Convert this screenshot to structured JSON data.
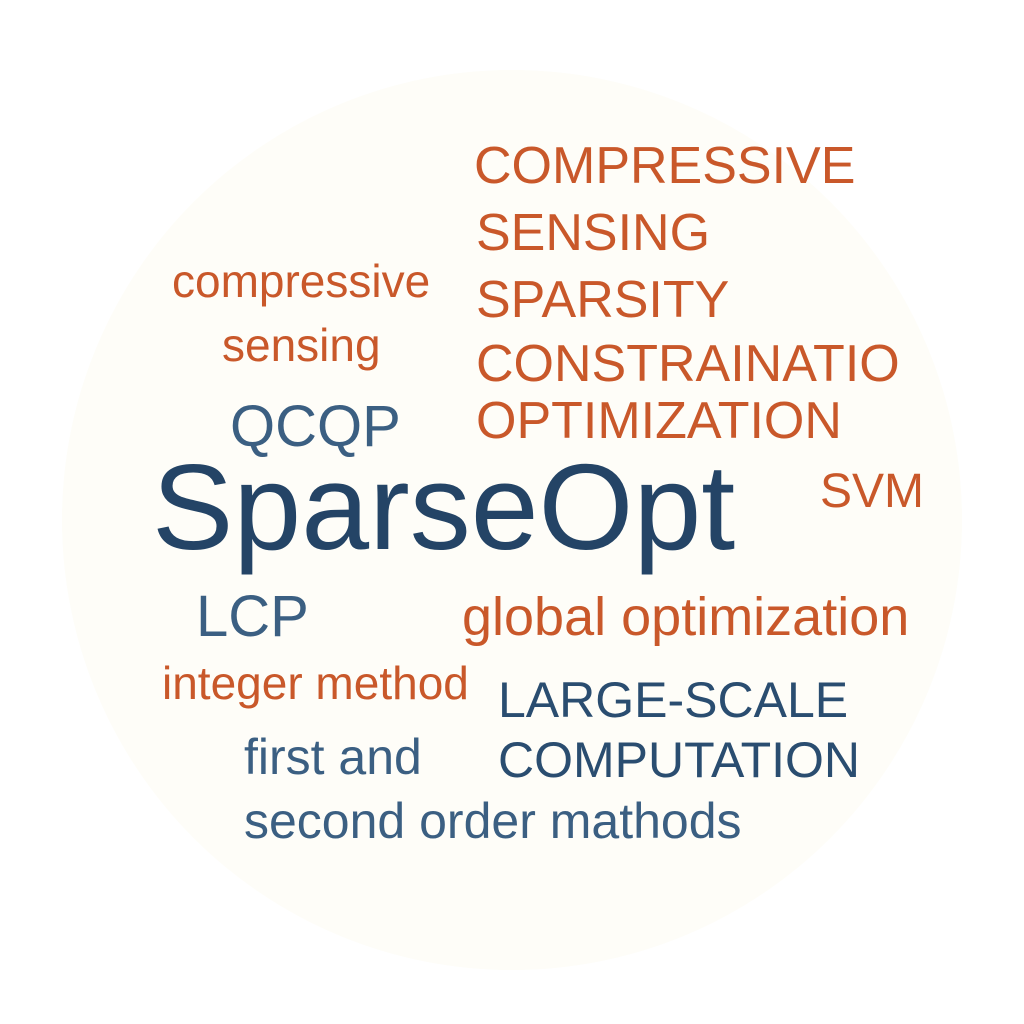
{
  "cloud": {
    "brand": "SparseOpt",
    "compressive_upper_1": "COMPRESSIVE",
    "compressive_upper_2": "SENSING",
    "sparsity": "SPARSITY",
    "constraint": "CONSTRAINATIO",
    "optimization": "OPTIMIZATION",
    "compressive_lower_1": "compressive",
    "compressive_lower_2": "sensing",
    "qcqp": "QCQP",
    "svm": "SVM",
    "lcp": "LCP",
    "global_optimization": "global optimization",
    "integer_method": "integer method",
    "large_scale": "LARGE-SCALE",
    "computation": "COMPUTATION",
    "first_and": "first and",
    "second_order": "second order mathods"
  },
  "colors": {
    "orange": "#c9582a",
    "navy": "#244466",
    "slate": "#3b5f82",
    "disc": "#fefdf8"
  }
}
